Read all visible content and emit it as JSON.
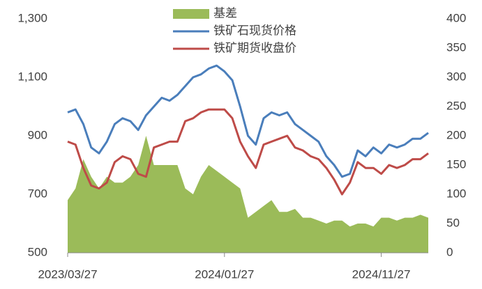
{
  "chart_data": {
    "type": "line",
    "categories": [
      "2023/03/27",
      null,
      null,
      null,
      null,
      null,
      null,
      null,
      null,
      null,
      null,
      null,
      null,
      null,
      null,
      null,
      null,
      null,
      null,
      null,
      "2024/01/27",
      null,
      null,
      null,
      null,
      null,
      null,
      null,
      null,
      null,
      null,
      null,
      null,
      null,
      null,
      null,
      null,
      null,
      null,
      null,
      "2024/11/27",
      null,
      null,
      null,
      null,
      null,
      null
    ],
    "series": [
      {
        "name": "基差",
        "color": "#9bbb59",
        "kind": "area",
        "axis": "y2",
        "values": [
          90,
          110,
          160,
          130,
          110,
          130,
          120,
          120,
          130,
          150,
          200,
          150,
          150,
          150,
          150,
          110,
          100,
          130,
          150,
          140,
          130,
          120,
          110,
          60,
          70,
          80,
          90,
          70,
          70,
          75,
          60,
          60,
          55,
          50,
          55,
          55,
          45,
          50,
          50,
          45,
          60,
          60,
          55,
          60,
          60,
          65,
          60
        ]
      },
      {
        "name": "铁矿石现货价格",
        "color": "#4a7ebb",
        "kind": "line",
        "values": [
          980,
          990,
          940,
          860,
          840,
          880,
          940,
          960,
          950,
          920,
          970,
          1000,
          1030,
          1020,
          1040,
          1070,
          1100,
          1110,
          1130,
          1140,
          1120,
          1090,
          1000,
          900,
          870,
          960,
          980,
          970,
          980,
          940,
          920,
          900,
          880,
          830,
          800,
          760,
          770,
          850,
          830,
          860,
          840,
          870,
          860,
          870,
          890,
          890,
          910
        ]
      },
      {
        "name": "铁矿期货收盘价",
        "color": "#be4b48",
        "kind": "line",
        "values": [
          880,
          870,
          790,
          730,
          720,
          740,
          810,
          830,
          820,
          770,
          760,
          860,
          870,
          880,
          880,
          950,
          960,
          980,
          990,
          990,
          990,
          960,
          880,
          830,
          790,
          870,
          880,
          890,
          900,
          860,
          850,
          830,
          820,
          790,
          750,
          700,
          740,
          810,
          790,
          790,
          770,
          800,
          790,
          800,
          820,
          820,
          840
        ]
      }
    ],
    "ylim": [
      500,
      1300
    ],
    "yticks": [
      500,
      700,
      900,
      {
        "value": 1100,
        "label": "1,100"
      },
      {
        "value": 1300,
        "label": "1,300"
      }
    ],
    "y2lim": [
      0,
      400
    ],
    "y2ticks": [
      0,
      50,
      100,
      150,
      200,
      250,
      300,
      350,
      400
    ],
    "grid": false,
    "legend": "top"
  }
}
